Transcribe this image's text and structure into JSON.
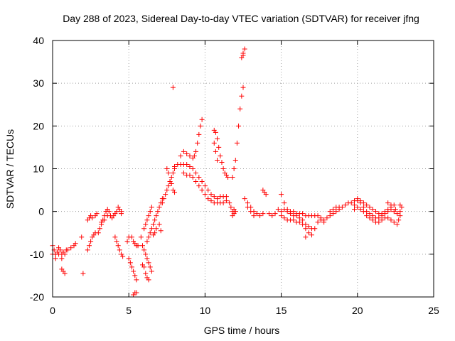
{
  "chart_data": {
    "type": "scatter",
    "title": "Day 288 of 2023, Sidereal Day-to-day VTEC variation (SDTVAR) for receiver jfng",
    "xlabel": "GPS time / hours",
    "ylabel": "SDTVAR / TECUs",
    "xlim": [
      0,
      25
    ],
    "ylim": [
      -20,
      40
    ],
    "xticks": [
      0,
      5,
      10,
      15,
      20,
      25
    ],
    "yticks": [
      -20,
      -10,
      0,
      10,
      20,
      30,
      40
    ],
    "grid": true,
    "marker": "+",
    "color": "#ff0000",
    "series": [
      {
        "name": "SDTVAR",
        "points": [
          [
            0.0,
            -8
          ],
          [
            0.1,
            -9
          ],
          [
            0.2,
            -10
          ],
          [
            0.3,
            -9.5
          ],
          [
            0.4,
            -8.5
          ],
          [
            0.5,
            -9
          ],
          [
            0.6,
            -10
          ],
          [
            0.7,
            -9.5
          ],
          [
            0.8,
            -10
          ],
          [
            0.9,
            -9
          ],
          [
            1.0,
            -9
          ],
          [
            1.2,
            -8.5
          ],
          [
            1.4,
            -8
          ],
          [
            1.5,
            -7.5
          ],
          [
            0.0,
            -10
          ],
          [
            0.2,
            -11
          ],
          [
            0.4,
            -10
          ],
          [
            0.6,
            -11
          ],
          [
            0.6,
            -13.5
          ],
          [
            0.7,
            -14
          ],
          [
            0.8,
            -14.5
          ],
          [
            1.9,
            -6
          ],
          [
            2.0,
            -14.5
          ],
          [
            2.3,
            -9
          ],
          [
            2.4,
            -8
          ],
          [
            2.5,
            -7
          ],
          [
            2.6,
            -6
          ],
          [
            2.7,
            -5.5
          ],
          [
            2.8,
            -5
          ],
          [
            2.3,
            -2
          ],
          [
            2.4,
            -1.5
          ],
          [
            2.5,
            -1
          ],
          [
            2.6,
            -1.5
          ],
          [
            2.8,
            -1
          ],
          [
            2.9,
            -0.5
          ],
          [
            3.0,
            -5
          ],
          [
            3.1,
            -4
          ],
          [
            3.2,
            -3
          ],
          [
            3.3,
            -2
          ],
          [
            3.4,
            -1
          ],
          [
            3.5,
            0
          ],
          [
            3.6,
            0.5
          ],
          [
            3.7,
            0
          ],
          [
            3.8,
            -1
          ],
          [
            3.9,
            -1.5
          ],
          [
            4.0,
            -1
          ],
          [
            4.1,
            -0.5
          ],
          [
            4.2,
            0
          ],
          [
            3.2,
            -2.5
          ],
          [
            3.4,
            -2
          ],
          [
            3.6,
            -1
          ],
          [
            4.1,
            -6
          ],
          [
            4.2,
            -7
          ],
          [
            4.3,
            -8
          ],
          [
            4.4,
            -9
          ],
          [
            4.5,
            -10
          ],
          [
            4.6,
            -10.5
          ],
          [
            4.3,
            1
          ],
          [
            4.4,
            0.5
          ],
          [
            4.5,
            0
          ],
          [
            4.5,
            -0.5
          ],
          [
            4.9,
            -7
          ],
          [
            5.0,
            -6
          ],
          [
            5.2,
            -6
          ],
          [
            5.3,
            -7
          ],
          [
            5.4,
            -7.5
          ],
          [
            5.5,
            -8
          ],
          [
            5.6,
            -8
          ],
          [
            5.0,
            -11
          ],
          [
            5.1,
            -12
          ],
          [
            5.2,
            -13
          ],
          [
            5.3,
            -14
          ],
          [
            5.4,
            -15
          ],
          [
            5.5,
            -16
          ],
          [
            5.3,
            -19.5
          ],
          [
            5.4,
            -19
          ],
          [
            5.5,
            -19
          ],
          [
            5.8,
            -6
          ],
          [
            5.9,
            -8
          ],
          [
            6.0,
            -9
          ],
          [
            6.1,
            -10
          ],
          [
            6.2,
            -11
          ],
          [
            6.3,
            -12
          ],
          [
            6.4,
            -13
          ],
          [
            6.5,
            -14
          ],
          [
            5.9,
            -12.5
          ],
          [
            6.0,
            -13
          ],
          [
            6.1,
            -14.5
          ],
          [
            6.2,
            -15.5
          ],
          [
            6.3,
            -16
          ],
          [
            6.0,
            -4
          ],
          [
            6.1,
            -3
          ],
          [
            6.2,
            -2
          ],
          [
            6.3,
            -1
          ],
          [
            6.4,
            0
          ],
          [
            6.5,
            1
          ],
          [
            6.2,
            -7
          ],
          [
            6.3,
            -6
          ],
          [
            6.4,
            -5
          ],
          [
            6.5,
            -4
          ],
          [
            6.6,
            -3
          ],
          [
            6.7,
            -2
          ],
          [
            6.8,
            -1
          ],
          [
            6.9,
            0
          ],
          [
            7.0,
            1
          ],
          [
            7.1,
            2
          ],
          [
            7.2,
            3
          ],
          [
            6.6,
            -5.5
          ],
          [
            6.7,
            -5
          ],
          [
            6.8,
            -4
          ],
          [
            7.0,
            -3
          ],
          [
            7.1,
            -4.5
          ],
          [
            7.2,
            2
          ],
          [
            7.3,
            3
          ],
          [
            7.4,
            4
          ],
          [
            7.5,
            5
          ],
          [
            7.6,
            6
          ],
          [
            7.7,
            7
          ],
          [
            7.8,
            8
          ],
          [
            7.9,
            9
          ],
          [
            8.0,
            10
          ],
          [
            7.5,
            10
          ],
          [
            7.6,
            9
          ],
          [
            7.7,
            7
          ],
          [
            7.8,
            6.5
          ],
          [
            7.9,
            5
          ],
          [
            8.0,
            4.5
          ],
          [
            7.9,
            29
          ],
          [
            8.0,
            10.5
          ],
          [
            8.2,
            11
          ],
          [
            8.4,
            11
          ],
          [
            8.6,
            11
          ],
          [
            8.8,
            11
          ],
          [
            9.0,
            10.5
          ],
          [
            9.2,
            10
          ],
          [
            9.4,
            9
          ],
          [
            9.6,
            8
          ],
          [
            9.8,
            7
          ],
          [
            10.0,
            6
          ],
          [
            10.2,
            5
          ],
          [
            10.4,
            4
          ],
          [
            10.6,
            3.5
          ],
          [
            10.8,
            3
          ],
          [
            11.0,
            3.5
          ],
          [
            11.2,
            3.5
          ],
          [
            11.4,
            3.5
          ],
          [
            8.4,
            13
          ],
          [
            8.6,
            14
          ],
          [
            8.8,
            13.5
          ],
          [
            9.0,
            13
          ],
          [
            9.2,
            12.5
          ],
          [
            9.3,
            13
          ],
          [
            9.4,
            14
          ],
          [
            9.5,
            16
          ],
          [
            9.6,
            18
          ],
          [
            9.7,
            20
          ],
          [
            9.8,
            21.5
          ],
          [
            8.6,
            9
          ],
          [
            8.8,
            8.5
          ],
          [
            9.0,
            8.5
          ],
          [
            9.2,
            8
          ],
          [
            9.4,
            7
          ],
          [
            9.6,
            6
          ],
          [
            9.8,
            5
          ],
          [
            10.0,
            4
          ],
          [
            10.2,
            3
          ],
          [
            10.4,
            2.5
          ],
          [
            10.6,
            2
          ],
          [
            10.8,
            2
          ],
          [
            11.0,
            2
          ],
          [
            11.2,
            2
          ],
          [
            11.4,
            2.5
          ],
          [
            10.6,
            19
          ],
          [
            10.7,
            18.5
          ],
          [
            10.8,
            17
          ],
          [
            10.9,
            15
          ],
          [
            11.0,
            13
          ],
          [
            11.1,
            11.5
          ],
          [
            11.2,
            10
          ],
          [
            11.3,
            9
          ],
          [
            11.4,
            8.5
          ],
          [
            11.5,
            8
          ],
          [
            10.6,
            16
          ],
          [
            10.7,
            14
          ],
          [
            10.8,
            12
          ],
          [
            11.8,
            8
          ],
          [
            11.9,
            10
          ],
          [
            12.0,
            12
          ],
          [
            12.1,
            16
          ],
          [
            12.2,
            20
          ],
          [
            12.3,
            24
          ],
          [
            12.4,
            27
          ],
          [
            12.5,
            29
          ],
          [
            12.4,
            36
          ],
          [
            12.5,
            37
          ],
          [
            12.6,
            38
          ],
          [
            12.5,
            36.5
          ],
          [
            11.6,
            2
          ],
          [
            11.7,
            1
          ],
          [
            11.8,
            0
          ],
          [
            11.9,
            -0.5
          ],
          [
            12.0,
            0
          ],
          [
            11.8,
            -1
          ],
          [
            11.9,
            0.5
          ],
          [
            12.6,
            3
          ],
          [
            12.8,
            2
          ],
          [
            13.0,
            1
          ],
          [
            13.2,
            0
          ],
          [
            13.4,
            -0.5
          ],
          [
            13.6,
            -1
          ],
          [
            13.8,
            -0.5
          ],
          [
            12.8,
            1
          ],
          [
            13.0,
            0
          ],
          [
            13.2,
            -1
          ],
          [
            13.8,
            5
          ],
          [
            13.9,
            4.5
          ],
          [
            14.0,
            4
          ],
          [
            14.2,
            -0.5
          ],
          [
            14.4,
            -1
          ],
          [
            14.6,
            -0.5
          ],
          [
            15.0,
            4
          ],
          [
            15.2,
            2
          ],
          [
            15.4,
            0.5
          ],
          [
            15.6,
            -0.5
          ],
          [
            15.8,
            -1
          ],
          [
            16.0,
            -1
          ],
          [
            16.2,
            -1.5
          ],
          [
            16.4,
            -2
          ],
          [
            16.6,
            -3
          ],
          [
            16.8,
            -3.5
          ],
          [
            17.0,
            -4
          ],
          [
            17.2,
            -4
          ],
          [
            15.0,
            -1
          ],
          [
            15.2,
            -1.5
          ],
          [
            15.4,
            -2
          ],
          [
            15.6,
            -2
          ],
          [
            15.8,
            -2
          ],
          [
            16.0,
            -2.5
          ],
          [
            16.2,
            -2.5
          ],
          [
            16.4,
            -3
          ],
          [
            16.6,
            -4
          ],
          [
            16.8,
            -5
          ],
          [
            17.0,
            -5.5
          ],
          [
            14.8,
            0.5
          ],
          [
            15.0,
            0
          ],
          [
            15.2,
            0.5
          ],
          [
            15.4,
            0
          ],
          [
            15.6,
            0
          ],
          [
            15.8,
            0
          ],
          [
            16.0,
            -0.5
          ],
          [
            16.2,
            -0.5
          ],
          [
            16.4,
            -0.5
          ],
          [
            16.6,
            -1
          ],
          [
            16.8,
            -1
          ],
          [
            17.0,
            -1
          ],
          [
            17.2,
            -1
          ],
          [
            16.6,
            -6
          ],
          [
            17.4,
            -1
          ],
          [
            17.6,
            -1.5
          ],
          [
            17.8,
            -2
          ],
          [
            18.0,
            -1.5
          ],
          [
            18.2,
            -1
          ],
          [
            18.4,
            -0.5
          ],
          [
            18.6,
            0
          ],
          [
            18.8,
            0.5
          ],
          [
            19.0,
            1
          ],
          [
            19.2,
            1.5
          ],
          [
            19.4,
            2
          ],
          [
            19.6,
            2
          ],
          [
            19.8,
            2.5
          ],
          [
            17.4,
            -2.5
          ],
          [
            17.6,
            -2
          ],
          [
            17.8,
            -2.5
          ],
          [
            18.2,
            0
          ],
          [
            18.4,
            0.5
          ],
          [
            18.6,
            1
          ],
          [
            18.8,
            1
          ],
          [
            19.8,
            1.5
          ],
          [
            20.0,
            2.5
          ],
          [
            20.2,
            2
          ],
          [
            20.4,
            1
          ],
          [
            20.6,
            0
          ],
          [
            20.8,
            -0.5
          ],
          [
            21.0,
            -1
          ],
          [
            21.2,
            -1.5
          ],
          [
            21.4,
            -1.5
          ],
          [
            21.6,
            -1
          ],
          [
            21.8,
            -0.5
          ],
          [
            22.0,
            0
          ],
          [
            22.2,
            1
          ],
          [
            22.4,
            1.5
          ],
          [
            20.0,
            3
          ],
          [
            20.2,
            2.5
          ],
          [
            20.4,
            2
          ],
          [
            20.6,
            1.5
          ],
          [
            20.8,
            1
          ],
          [
            21.0,
            0.5
          ],
          [
            21.2,
            0
          ],
          [
            21.4,
            -0.5
          ],
          [
            21.6,
            -0.5
          ],
          [
            21.8,
            0
          ],
          [
            22.0,
            0.5
          ],
          [
            22.2,
            0.5
          ],
          [
            22.4,
            0
          ],
          [
            22.6,
            -0.5
          ],
          [
            22.8,
            0
          ],
          [
            22.9,
            1
          ],
          [
            19.8,
            0.5
          ],
          [
            20.0,
            1
          ],
          [
            20.2,
            0.5
          ],
          [
            20.4,
            0
          ],
          [
            20.6,
            -1
          ],
          [
            20.8,
            -1.5
          ],
          [
            21.0,
            -2
          ],
          [
            21.2,
            -2.5
          ],
          [
            21.4,
            -2.5
          ],
          [
            21.6,
            -2
          ],
          [
            21.8,
            -1.5
          ],
          [
            22.0,
            -1.5
          ],
          [
            22.2,
            -2
          ],
          [
            22.4,
            -2.5
          ],
          [
            22.6,
            -3
          ],
          [
            22.7,
            -2
          ],
          [
            22.8,
            -1
          ],
          [
            22.0,
            2
          ],
          [
            22.2,
            1.5
          ],
          [
            22.5,
            0.5
          ],
          [
            22.8,
            1.5
          ]
        ]
      }
    ]
  }
}
